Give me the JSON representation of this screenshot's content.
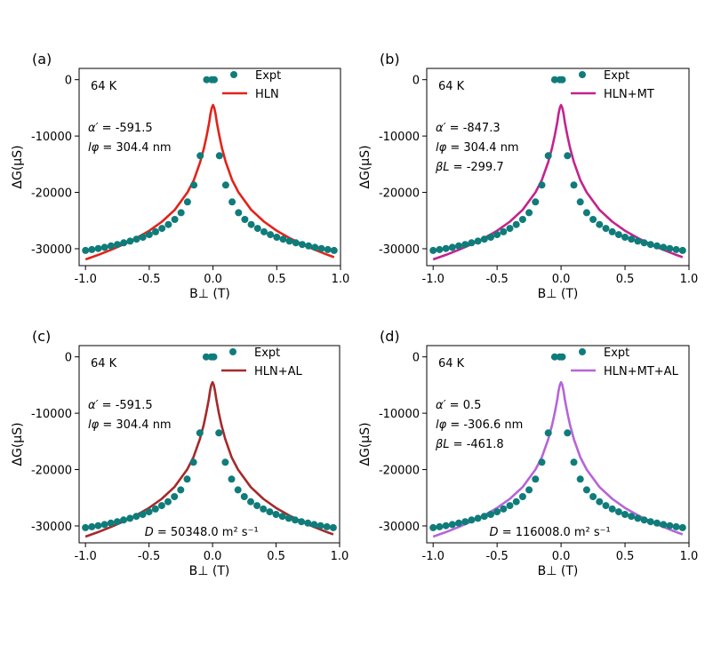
{
  "figure": {
    "x_tick_labels": [
      "-1.0",
      "-0.5",
      "0.0",
      "0.5",
      "1.0"
    ],
    "y_tick_labels": [
      "0",
      "-10000",
      "-20000",
      "-30000"
    ]
  },
  "chart_data": [
    {
      "type": "scatter",
      "panel": "(a)",
      "temperature": "64 K",
      "xlabel": "B⊥ (T)",
      "ylabel": "ΔG(μS)",
      "xlim": [
        -1.05,
        1.0
      ],
      "ylim": [
        -33000,
        2000
      ],
      "fit_color": "#e2231a",
      "expt_color": "#0f7c7a",
      "legend": {
        "expt": "Expt",
        "fit": "HLN"
      },
      "params": [
        {
          "sym": "α′",
          "val": " = -591.5"
        },
        {
          "sym": "lφ",
          "val": " = 304.4 nm"
        }
      ],
      "diffusion": null,
      "expt_points": {
        "x": [
          -1.0,
          -0.95,
          -0.9,
          -0.85,
          -0.8,
          -0.75,
          -0.7,
          -0.65,
          -0.6,
          -0.55,
          -0.5,
          -0.45,
          -0.4,
          -0.35,
          -0.3,
          -0.25,
          -0.2,
          -0.15,
          -0.1,
          -0.05,
          -0.01,
          0.01,
          0.05,
          0.1,
          0.15,
          0.2,
          0.25,
          0.3,
          0.35,
          0.4,
          0.45,
          0.5,
          0.55,
          0.6,
          0.65,
          0.7,
          0.75,
          0.8,
          0.85,
          0.9,
          0.95
        ],
        "y": [
          -30300,
          -30150,
          -29950,
          -29750,
          -29500,
          -29250,
          -28950,
          -28650,
          -28300,
          -27950,
          -27500,
          -27000,
          -26400,
          -25700,
          -24800,
          -23600,
          -21700,
          -18700,
          -13500,
          0,
          0,
          0,
          -13500,
          -18700,
          -21700,
          -23600,
          -24800,
          -25700,
          -26400,
          -27000,
          -27500,
          -27950,
          -28300,
          -28650,
          -28950,
          -29250,
          -29500,
          -29750,
          -29950,
          -30150,
          -30300
        ]
      },
      "fit_curve": {
        "x": [
          -1.0,
          -0.9,
          -0.8,
          -0.7,
          -0.6,
          -0.5,
          -0.4,
          -0.3,
          -0.2,
          -0.15,
          -0.1,
          -0.07,
          -0.05,
          -0.03,
          -0.02,
          -0.01,
          0.0,
          0.01,
          0.02,
          0.03,
          0.05,
          0.07,
          0.1,
          0.15,
          0.2,
          0.3,
          0.4,
          0.5,
          0.6,
          0.7,
          0.8,
          0.9,
          0.95
        ],
        "y": [
          -31900,
          -31100,
          -30200,
          -29200,
          -28100,
          -26800,
          -25200,
          -23100,
          -20000,
          -17800,
          -14600,
          -12100,
          -10000,
          -7600,
          -6100,
          -5000,
          -4500,
          -5000,
          -6100,
          -7600,
          -10000,
          -12100,
          -14600,
          -17800,
          -20000,
          -23100,
          -25200,
          -26800,
          -28100,
          -29200,
          -30200,
          -31100,
          -31500
        ]
      }
    },
    {
      "type": "scatter",
      "panel": "(b)",
      "temperature": "64 K",
      "xlabel": "B⊥ (T)",
      "ylabel": "ΔG(μS)",
      "xlim": [
        -1.05,
        1.0
      ],
      "ylim": [
        -33000,
        2000
      ],
      "fit_color": "#c2248e",
      "expt_color": "#0f7c7a",
      "legend": {
        "expt": "Expt",
        "fit": "HLN+MT"
      },
      "params": [
        {
          "sym": "α′",
          "val": " = -847.3"
        },
        {
          "sym": "lφ",
          "val": " = 304.4 nm"
        },
        {
          "sym": "βL",
          "val": " = -299.7"
        }
      ],
      "diffusion": null,
      "expt_points": {
        "x": [
          -1.0,
          -0.95,
          -0.9,
          -0.85,
          -0.8,
          -0.75,
          -0.7,
          -0.65,
          -0.6,
          -0.55,
          -0.5,
          -0.45,
          -0.4,
          -0.35,
          -0.3,
          -0.25,
          -0.2,
          -0.15,
          -0.1,
          -0.05,
          -0.01,
          0.01,
          0.05,
          0.1,
          0.15,
          0.2,
          0.25,
          0.3,
          0.35,
          0.4,
          0.45,
          0.5,
          0.55,
          0.6,
          0.65,
          0.7,
          0.75,
          0.8,
          0.85,
          0.9,
          0.95
        ],
        "y": [
          -30300,
          -30150,
          -29950,
          -29750,
          -29500,
          -29250,
          -28950,
          -28650,
          -28300,
          -27950,
          -27500,
          -27000,
          -26400,
          -25700,
          -24800,
          -23600,
          -21700,
          -18700,
          -13500,
          0,
          0,
          0,
          -13500,
          -18700,
          -21700,
          -23600,
          -24800,
          -25700,
          -26400,
          -27000,
          -27500,
          -27950,
          -28300,
          -28650,
          -28950,
          -29250,
          -29500,
          -29750,
          -29950,
          -30150,
          -30300
        ]
      },
      "fit_curve": {
        "x": [
          -1.0,
          -0.9,
          -0.8,
          -0.7,
          -0.6,
          -0.5,
          -0.4,
          -0.3,
          -0.2,
          -0.15,
          -0.1,
          -0.07,
          -0.05,
          -0.03,
          -0.02,
          -0.01,
          0.0,
          0.01,
          0.02,
          0.03,
          0.05,
          0.07,
          0.1,
          0.15,
          0.2,
          0.3,
          0.4,
          0.5,
          0.6,
          0.7,
          0.8,
          0.9,
          0.95
        ],
        "y": [
          -31900,
          -31100,
          -30200,
          -29200,
          -28100,
          -26800,
          -25200,
          -23100,
          -20000,
          -17800,
          -14600,
          -12100,
          -10000,
          -7600,
          -6100,
          -5000,
          -4500,
          -5000,
          -6100,
          -7600,
          -10000,
          -12100,
          -14600,
          -17800,
          -20000,
          -23100,
          -25200,
          -26800,
          -28100,
          -29200,
          -30200,
          -31100,
          -31500
        ]
      }
    },
    {
      "type": "scatter",
      "panel": "(c)",
      "temperature": "64 K",
      "xlabel": "B⊥ (T)",
      "ylabel": "ΔG(μS)",
      "xlim": [
        -1.05,
        1.0
      ],
      "ylim": [
        -33000,
        2000
      ],
      "fit_color": "#a52a2a",
      "expt_color": "#0f7c7a",
      "legend": {
        "expt": "Expt",
        "fit": "HLN+AL"
      },
      "params": [
        {
          "sym": "α′",
          "val": " = -591.5"
        },
        {
          "sym": "lφ",
          "val": " = 304.4 nm"
        }
      ],
      "diffusion": {
        "sym": "D",
        "val": " = 50348.0 m² s⁻¹"
      },
      "expt_points": {
        "x": [
          -1.0,
          -0.95,
          -0.9,
          -0.85,
          -0.8,
          -0.75,
          -0.7,
          -0.65,
          -0.6,
          -0.55,
          -0.5,
          -0.45,
          -0.4,
          -0.35,
          -0.3,
          -0.25,
          -0.2,
          -0.15,
          -0.1,
          -0.05,
          -0.01,
          0.01,
          0.05,
          0.1,
          0.15,
          0.2,
          0.25,
          0.3,
          0.35,
          0.4,
          0.45,
          0.5,
          0.55,
          0.6,
          0.65,
          0.7,
          0.75,
          0.8,
          0.85,
          0.9,
          0.95
        ],
        "y": [
          -30300,
          -30150,
          -29950,
          -29750,
          -29500,
          -29250,
          -28950,
          -28650,
          -28300,
          -27950,
          -27500,
          -27000,
          -26400,
          -25700,
          -24800,
          -23600,
          -21700,
          -18700,
          -13500,
          0,
          0,
          0,
          -13500,
          -18700,
          -21700,
          -23600,
          -24800,
          -25700,
          -26400,
          -27000,
          -27500,
          -27950,
          -28300,
          -28650,
          -28950,
          -29250,
          -29500,
          -29750,
          -29950,
          -30150,
          -30300
        ]
      },
      "fit_curve": {
        "x": [
          -1.0,
          -0.9,
          -0.8,
          -0.7,
          -0.6,
          -0.5,
          -0.4,
          -0.3,
          -0.2,
          -0.15,
          -0.1,
          -0.07,
          -0.05,
          -0.03,
          -0.02,
          -0.01,
          0.0,
          0.01,
          0.02,
          0.03,
          0.05,
          0.07,
          0.1,
          0.15,
          0.2,
          0.3,
          0.4,
          0.5,
          0.6,
          0.7,
          0.8,
          0.9,
          0.95
        ],
        "y": [
          -31900,
          -31100,
          -30200,
          -29200,
          -28100,
          -26800,
          -25200,
          -23100,
          -20000,
          -17800,
          -14600,
          -12100,
          -10000,
          -7600,
          -6100,
          -5000,
          -4500,
          -5000,
          -6100,
          -7600,
          -10000,
          -12100,
          -14600,
          -17800,
          -20000,
          -23100,
          -25200,
          -26800,
          -28100,
          -29200,
          -30200,
          -31100,
          -31500
        ]
      }
    },
    {
      "type": "scatter",
      "panel": "(d)",
      "temperature": "64 K",
      "xlabel": "B⊥ (T)",
      "ylabel": "ΔG(μS)",
      "xlim": [
        -1.05,
        1.0
      ],
      "ylim": [
        -33000,
        2000
      ],
      "fit_color": "#b565d8",
      "expt_color": "#0f7c7a",
      "legend": {
        "expt": "Expt",
        "fit": "HLN+MT+AL"
      },
      "params": [
        {
          "sym": "α′",
          "val": " = 0.5"
        },
        {
          "sym": "lφ",
          "val": " = -306.6 nm"
        },
        {
          "sym": "βL",
          "val": " = -461.8"
        }
      ],
      "diffusion": {
        "sym": "D",
        "val": " = 116008.0 m² s⁻¹"
      },
      "expt_points": {
        "x": [
          -1.0,
          -0.95,
          -0.9,
          -0.85,
          -0.8,
          -0.75,
          -0.7,
          -0.65,
          -0.6,
          -0.55,
          -0.5,
          -0.45,
          -0.4,
          -0.35,
          -0.3,
          -0.25,
          -0.2,
          -0.15,
          -0.1,
          -0.05,
          -0.01,
          0.01,
          0.05,
          0.1,
          0.15,
          0.2,
          0.25,
          0.3,
          0.35,
          0.4,
          0.45,
          0.5,
          0.55,
          0.6,
          0.65,
          0.7,
          0.75,
          0.8,
          0.85,
          0.9,
          0.95
        ],
        "y": [
          -30300,
          -30150,
          -29950,
          -29750,
          -29500,
          -29250,
          -28950,
          -28650,
          -28300,
          -27950,
          -27500,
          -27000,
          -26400,
          -25700,
          -24800,
          -23600,
          -21700,
          -18700,
          -13500,
          0,
          0,
          0,
          -13500,
          -18700,
          -21700,
          -23600,
          -24800,
          -25700,
          -26400,
          -27000,
          -27500,
          -27950,
          -28300,
          -28650,
          -28950,
          -29250,
          -29500,
          -29750,
          -29950,
          -30150,
          -30300
        ]
      },
      "fit_curve": {
        "x": [
          -1.0,
          -0.9,
          -0.8,
          -0.7,
          -0.6,
          -0.5,
          -0.4,
          -0.3,
          -0.2,
          -0.15,
          -0.1,
          -0.07,
          -0.05,
          -0.03,
          -0.02,
          -0.01,
          0.0,
          0.01,
          0.02,
          0.03,
          0.05,
          0.07,
          0.1,
          0.15,
          0.2,
          0.3,
          0.4,
          0.5,
          0.6,
          0.7,
          0.8,
          0.9,
          0.95
        ],
        "y": [
          -31900,
          -31100,
          -30200,
          -29200,
          -28100,
          -26800,
          -25200,
          -23100,
          -20000,
          -17800,
          -14600,
          -12100,
          -10000,
          -7600,
          -6100,
          -5000,
          -4500,
          -5000,
          -6100,
          -7600,
          -10000,
          -12100,
          -14600,
          -17800,
          -20000,
          -23100,
          -25200,
          -26800,
          -28100,
          -29200,
          -30200,
          -31100,
          -31500
        ]
      }
    }
  ]
}
